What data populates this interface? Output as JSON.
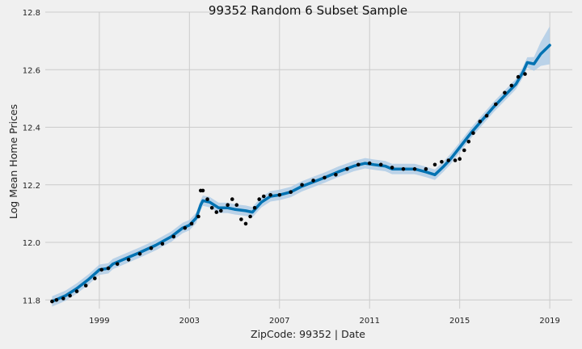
{
  "chart_data": {
    "type": "line",
    "title": "99352 Random 6 Subset Sample",
    "xlabel": "ZipCode: 99352 | Date",
    "ylabel": "Log Mean Home Prices",
    "xlim": [
      1996.6,
      2020.0
    ],
    "ylim": [
      11.77,
      12.8
    ],
    "x_ticks": [
      1999,
      2003,
      2007,
      2011,
      2015,
      2019
    ],
    "x_tick_labels": [
      "1999",
      "2003",
      "2007",
      "2011",
      "2015",
      "2019"
    ],
    "y_ticks": [
      11.8,
      12.0,
      12.2,
      12.4,
      12.6,
      12.8
    ],
    "y_tick_labels": [
      "11.8",
      "12.0",
      "12.2",
      "12.4",
      "12.6",
      "12.8"
    ],
    "grid": true,
    "colors": {
      "background": "#f0f0f0",
      "grid": "#cbcbcb",
      "forecast": "#0072B2",
      "interval": "#a8c8e6",
      "observed": "#000000"
    },
    "series": [
      {
        "kind": "forecast",
        "x": [
          1996.9,
          1997.5,
          1998.0,
          1998.5,
          1999.0,
          1999.4,
          1999.6,
          2000.2,
          2000.8,
          2001.5,
          2002.2,
          2002.7,
          2003.0,
          2003.3,
          2003.5,
          2003.6,
          2003.9,
          2004.3,
          2004.7,
          2005.0,
          2005.5,
          2005.8,
          2006.2,
          2006.6,
          2007.0,
          2007.5,
          2008.0,
          2008.5,
          2009.0,
          2009.6,
          2010.3,
          2010.8,
          2011.2,
          2011.7,
          2012.0,
          2012.5,
          2013.0,
          2013.5,
          2013.9,
          2014.3,
          2014.6,
          2015.0,
          2015.5,
          2016.0,
          2016.5,
          2017.0,
          2017.5,
          2017.8,
          2018.0,
          2018.3,
          2018.6,
          2019.0
        ],
        "y": [
          11.795,
          11.815,
          11.84,
          11.87,
          11.905,
          11.91,
          11.925,
          11.945,
          11.965,
          11.99,
          12.02,
          12.05,
          12.06,
          12.085,
          12.13,
          12.145,
          12.14,
          12.12,
          12.12,
          12.115,
          12.11,
          12.105,
          12.14,
          12.16,
          12.165,
          12.175,
          12.195,
          12.21,
          12.225,
          12.245,
          12.265,
          12.275,
          12.27,
          12.265,
          12.255,
          12.255,
          12.255,
          12.245,
          12.235,
          12.265,
          12.29,
          12.33,
          12.38,
          12.425,
          12.47,
          12.51,
          12.55,
          12.59,
          12.625,
          12.62,
          12.655,
          12.685
        ]
      },
      {
        "kind": "observed",
        "x": [
          1996.9,
          1997.1,
          1997.4,
          1997.7,
          1998.0,
          1998.4,
          1998.8,
          1999.1,
          1999.4,
          1999.8,
          2000.3,
          2000.8,
          2001.3,
          2001.8,
          2002.3,
          2002.8,
          2003.1,
          2003.4,
          2003.5,
          2003.6,
          2003.8,
          2004.0,
          2004.2,
          2004.4,
          2004.7,
          2004.9,
          2005.1,
          2005.3,
          2005.5,
          2005.7,
          2005.9,
          2006.1,
          2006.3,
          2006.6,
          2007.0,
          2007.5,
          2008.0,
          2008.5,
          2009.0,
          2009.5,
          2010.0,
          2010.5,
          2011.0,
          2011.5,
          2012.0,
          2012.5,
          2013.0,
          2013.5,
          2013.9,
          2014.2,
          2014.5,
          2014.8,
          2015.0,
          2015.2,
          2015.4,
          2015.6,
          2015.9,
          2016.2,
          2016.6,
          2017.0,
          2017.3,
          2017.6,
          2017.9
        ],
        "y": [
          11.795,
          11.8,
          11.805,
          11.815,
          11.83,
          11.85,
          11.875,
          11.905,
          11.91,
          11.925,
          11.94,
          11.96,
          11.98,
          11.995,
          12.02,
          12.05,
          12.065,
          12.09,
          12.18,
          12.18,
          12.15,
          12.12,
          12.105,
          12.11,
          12.13,
          12.15,
          12.13,
          12.08,
          12.065,
          12.09,
          12.12,
          12.15,
          12.16,
          12.165,
          12.165,
          12.175,
          12.2,
          12.215,
          12.225,
          12.235,
          12.255,
          12.27,
          12.275,
          12.27,
          12.26,
          12.255,
          12.255,
          12.255,
          12.27,
          12.28,
          12.285,
          12.285,
          12.29,
          12.32,
          12.35,
          12.38,
          12.42,
          12.44,
          12.48,
          12.52,
          12.545,
          12.575,
          12.585
        ]
      }
    ]
  }
}
